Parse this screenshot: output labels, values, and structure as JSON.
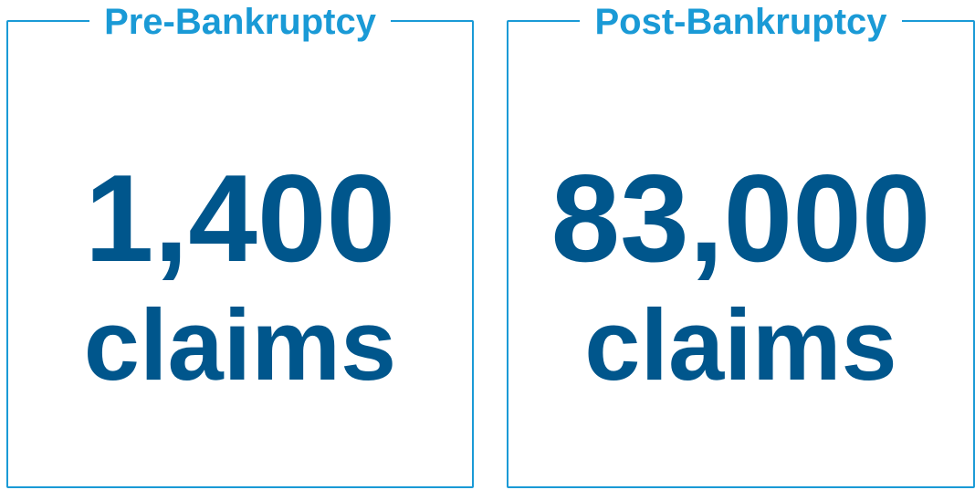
{
  "panels": [
    {
      "title": "Pre-Bankruptcy",
      "value": "1,400",
      "unit": "claims"
    },
    {
      "title": "Post-Bankruptcy",
      "value": "83,000",
      "unit": "claims"
    }
  ]
}
